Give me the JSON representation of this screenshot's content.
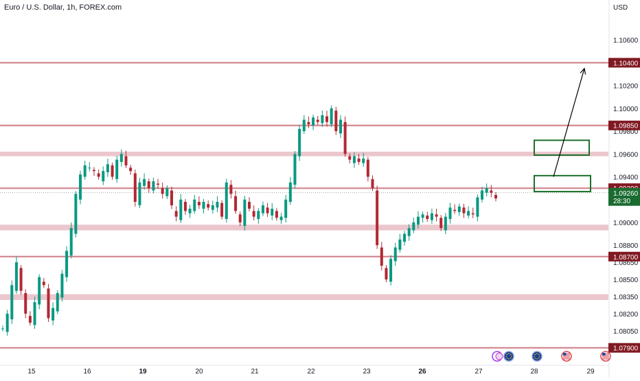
{
  "header": {
    "title": "Euro / U.S. Dollar, 1h, FOREX.com"
  },
  "chart_data": {
    "type": "candlestick",
    "currency_label": "USD",
    "ylim": [
      1.0785,
      1.1095
    ],
    "y_ticks": [
      1.106,
      1.102,
      1.1,
      1.098,
      1.096,
      1.094,
      1.09,
      1.088,
      1.0865,
      1.085,
      1.0835,
      1.082,
      1.0805
    ],
    "y_tick_labels": [
      "1.10600",
      "1.10200",
      "1.10000",
      "1.09800",
      "1.09600",
      "1.09400",
      "1.09000",
      "1.08800",
      "1.08650",
      "1.08500",
      "1.08350",
      "1.08200",
      "1.08050"
    ],
    "x_range": [
      0,
      932
    ],
    "x_ticks": [
      {
        "x": 46,
        "label": "15",
        "bold": false
      },
      {
        "x": 127,
        "label": "16",
        "bold": false
      },
      {
        "x": 208,
        "label": "19",
        "bold": true
      },
      {
        "x": 290,
        "label": "20",
        "bold": false
      },
      {
        "x": 371,
        "label": "21",
        "bold": false
      },
      {
        "x": 453,
        "label": "22",
        "bold": false
      },
      {
        "x": 534,
        "label": "23",
        "bold": false
      },
      {
        "x": 615,
        "label": "26",
        "bold": true
      },
      {
        "x": 697,
        "label": "27",
        "bold": false
      },
      {
        "x": 778,
        "label": "28",
        "bold": false
      },
      {
        "x": 860,
        "label": "29",
        "bold": false
      }
    ],
    "resistance_lines": [
      {
        "price": 1.104,
        "label": "1.10400"
      },
      {
        "price": 1.0985,
        "label": "1.09850"
      },
      {
        "price": 1.093,
        "label": "1.09300"
      },
      {
        "price": 1.087,
        "label": "1.08700"
      },
      {
        "price": 1.079,
        "label": "1.07900"
      }
    ],
    "zones": [
      {
        "from": 1.0958,
        "to": 1.0962
      },
      {
        "from": 1.0893,
        "to": 1.0898
      },
      {
        "from": 1.0832,
        "to": 1.0837
      }
    ],
    "current_price": {
      "price": 1.0926,
      "label": "1.09260",
      "timer": "28:30"
    },
    "boxes": [
      {
        "x0": 778,
        "x1": 858,
        "p_top": 1.0972,
        "p_bottom": 1.0959
      },
      {
        "x0": 778,
        "x1": 860,
        "p_top": 1.0941,
        "p_bottom": 1.0927
      }
    ],
    "arrow": {
      "x0": 806,
      "p0": 1.094,
      "x1": 851,
      "p1": 1.1035
    },
    "candle_path": [
      [
        1.0807,
        1.0804
      ],
      [
        1.082,
        1.0815
      ],
      [
        1.0845,
        1.084
      ],
      [
        1.0865,
        1.086
      ],
      [
        1.084,
        1.0838
      ],
      [
        1.082,
        1.0818
      ],
      [
        1.0812,
        1.081
      ],
      [
        1.083,
        1.0828
      ],
      [
        1.0852,
        1.0848
      ],
      [
        1.0845,
        1.0842
      ],
      [
        1.0816,
        1.0814
      ],
      [
        1.0825,
        1.0822
      ],
      [
        1.0838,
        1.0834
      ],
      [
        1.0855,
        1.0852
      ],
      [
        1.0875,
        1.0871
      ],
      [
        1.0895,
        1.089
      ],
      [
        1.0925,
        1.092
      ],
      [
        1.0942,
        1.094
      ],
      [
        1.095,
        1.0948
      ],
      [
        1.0948,
        1.0946
      ],
      [
        1.0945,
        1.0943
      ],
      [
        1.094,
        1.0936
      ],
      [
        1.0945,
        1.0944
      ],
      [
        1.0951,
        1.095
      ],
      [
        1.094,
        1.0938
      ],
      [
        1.0955,
        1.0953
      ],
      [
        1.096,
        1.0958
      ],
      [
        1.095,
        1.0948
      ],
      [
        1.0945,
        1.0943
      ],
      [
        1.0918,
        1.0915
      ],
      [
        1.0935,
        1.0932
      ],
      [
        1.0938,
        1.0936
      ],
      [
        1.093,
        1.0928
      ],
      [
        1.0936,
        1.0934
      ],
      [
        1.0933,
        1.093
      ],
      [
        1.0925,
        1.0923
      ],
      [
        1.093,
        1.0928
      ],
      [
        1.0915,
        1.091
      ],
      [
        1.0905,
        1.0902
      ],
      [
        1.092,
        1.0918
      ],
      [
        1.091,
        1.0908
      ],
      [
        1.0912,
        1.091
      ],
      [
        1.092,
        1.0918
      ],
      [
        1.0915,
        1.0912
      ],
      [
        1.0918,
        1.0916
      ],
      [
        1.0913,
        1.0911
      ],
      [
        1.0915,
        1.0913
      ],
      [
        1.0918,
        1.0917
      ],
      [
        1.0905,
        1.0903
      ],
      [
        1.0935,
        1.0933
      ],
      [
        1.0925,
        1.0923
      ],
      [
        1.091,
        1.0907
      ],
      [
        1.09,
        1.0897
      ],
      [
        1.092,
        1.0918
      ],
      [
        1.0912,
        1.091
      ],
      [
        1.0905,
        1.0903
      ],
      [
        1.091,
        1.0908
      ],
      [
        1.0915,
        1.0913
      ],
      [
        1.0908,
        1.0906
      ],
      [
        1.0912,
        1.091
      ],
      [
        1.0904,
        1.0902
      ],
      [
        1.0905,
        1.0904
      ],
      [
        1.092,
        1.0918
      ],
      [
        1.0935,
        1.0933
      ],
      [
        1.096,
        1.0958
      ],
      [
        1.0982,
        1.098
      ],
      [
        1.099,
        1.0988
      ],
      [
        1.0986,
        1.0985
      ],
      [
        1.0992,
        1.099
      ],
      [
        1.0988,
        1.0987
      ],
      [
        1.0994,
        1.0993
      ],
      [
        1.0988,
        1.0986
      ],
      [
        1.1,
        1.0998
      ],
      [
        1.098,
        1.0978
      ],
      [
        1.099,
        1.0988
      ],
      [
        1.096,
        1.0958
      ],
      [
        1.0955,
        1.0952
      ],
      [
        1.0958,
        1.0956
      ],
      [
        1.0953,
        1.0952
      ],
      [
        1.0956,
        1.0955
      ],
      [
        1.094,
        1.0938
      ],
      [
        1.093,
        1.0928
      ],
      [
        1.088,
        1.0878
      ],
      [
        1.0862,
        1.086
      ],
      [
        1.085,
        1.0848
      ],
      [
        1.0868,
        1.0866
      ],
      [
        1.0878,
        1.0876
      ],
      [
        1.0885,
        1.0883
      ],
      [
        1.089,
        1.0888
      ],
      [
        1.0895,
        1.0893
      ],
      [
        1.09,
        1.0898
      ],
      [
        1.0905,
        1.0904
      ],
      [
        1.0907,
        1.0906
      ],
      [
        1.0903,
        1.0902
      ],
      [
        1.0908,
        1.0907
      ],
      [
        1.0905,
        1.0904
      ],
      [
        1.0895,
        1.0893
      ],
      [
        1.0905,
        1.0903
      ],
      [
        1.0913,
        1.0911
      ],
      [
        1.091,
        1.0909
      ],
      [
        1.0914,
        1.0913
      ],
      [
        1.0908,
        1.0906
      ],
      [
        1.091,
        1.0908
      ],
      [
        1.0907,
        1.0905
      ],
      [
        1.0922,
        1.092
      ],
      [
        1.0928,
        1.0926
      ],
      [
        1.093,
        1.0928
      ],
      [
        1.0926,
        1.0924
      ],
      [
        1.0921,
        1.092
      ]
    ]
  },
  "events": [
    {
      "x": 724,
      "type": "earnings"
    },
    {
      "x": 741,
      "type": "flag-eu"
    },
    {
      "x": 782,
      "type": "flag-eu"
    },
    {
      "x": 825,
      "type": "flag-us"
    },
    {
      "x": 882,
      "type": "flag-us"
    }
  ],
  "colors": {
    "up": "#089981",
    "down": "#b22833",
    "level_line": "#c2606a",
    "level_label_bg": "#801922",
    "zone": "#ebc7cd",
    "price_label_bg": "#1a6b30",
    "box_stroke": "#1b6f2a",
    "axis_text": "#131722",
    "arrow": "#000000"
  }
}
